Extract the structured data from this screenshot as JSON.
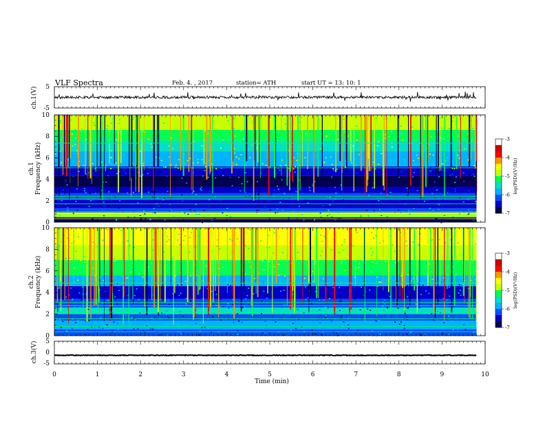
{
  "header": {
    "title": "VLF  Spectra",
    "date": "Feb. 4.  , 2017",
    "station": "station= ATH",
    "start_ut": "start  UT  =    13: 10: 1"
  },
  "chart_data": [
    {
      "type": "line",
      "panel": "ch1-waveform",
      "ylabel": "ch.1(V)",
      "ylim": [
        -5,
        5
      ],
      "yticks": [
        "5",
        "-5"
      ],
      "xlim": [
        0,
        10
      ],
      "data_extent_min": 9.8,
      "baseline": 0,
      "noise_amplitude": 0.6,
      "spike_amplitude": 2.5
    },
    {
      "type": "heatmap",
      "panel": "ch1-spectrogram",
      "ylabel": "ch.1\nFrequency  (kHz)",
      "ylabel_line1": "ch.1",
      "ylabel_line2": "Frequency  (kHz)",
      "ylim": [
        0,
        10
      ],
      "yticks": [
        "0",
        "2",
        "4",
        "6",
        "8",
        "10"
      ],
      "xlim": [
        0,
        10
      ],
      "colorbar": {
        "label": "log(PSD)(V²/Hz)",
        "ticks": [
          "-3",
          "-4",
          "-5",
          "-6",
          "-7"
        ],
        "range": [
          -7,
          -3
        ]
      }
    },
    {
      "type": "heatmap",
      "panel": "ch2-spectrogram",
      "ylabel_line1": "ch.2",
      "ylabel_line2": "Frequency  (kHz)",
      "ylim": [
        0,
        10
      ],
      "yticks": [
        "0",
        "2",
        "4",
        "6",
        "8",
        "10"
      ],
      "xlim": [
        0,
        10
      ],
      "colorbar": {
        "label": "log(PSD)(V²/Hz)",
        "ticks": [
          "-3",
          "-4",
          "-5",
          "-6",
          "-7"
        ],
        "range": [
          -7,
          -3
        ]
      }
    },
    {
      "type": "line",
      "panel": "ch3-waveform",
      "ylabel": "ch.3(V)",
      "ylim": [
        -5,
        5
      ],
      "yticks": [
        "5",
        "0",
        "-5"
      ],
      "xlim": [
        0,
        10
      ],
      "baseline": -1.2,
      "noise_amplitude": 0.15
    }
  ],
  "xaxis": {
    "label": "Time  (min)",
    "ticks": [
      "0",
      "1",
      "2",
      "3",
      "4",
      "5",
      "6",
      "7",
      "8",
      "9",
      "10"
    ]
  },
  "colors": {
    "colormap": [
      "#000050",
      "#0000c8",
      "#0050ff",
      "#00b4ff",
      "#00e0c8",
      "#00ff50",
      "#c8ff00",
      "#ffff00",
      "#ff9600",
      "#ff0000",
      "#c80000",
      "#ffffff"
    ]
  }
}
